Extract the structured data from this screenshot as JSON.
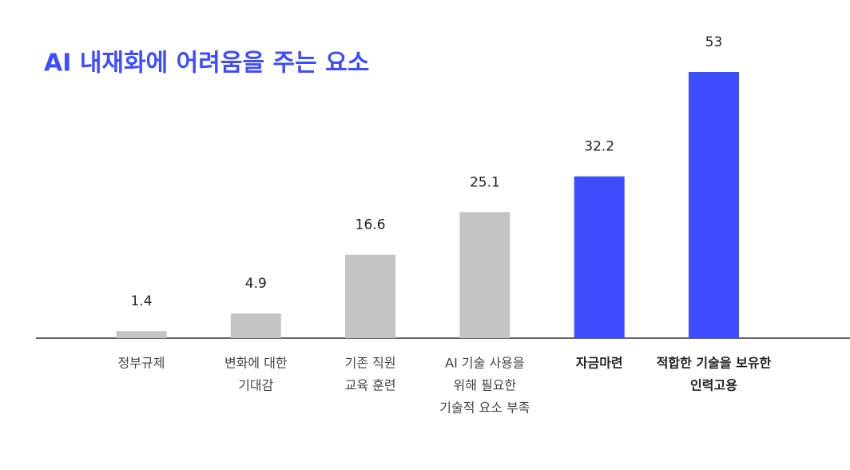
{
  "chart_data": {
    "type": "bar",
    "title": "AI 내재화에 어려움을 주는 요소",
    "categories": [
      [
        "정부규제"
      ],
      [
        "변화에 대한",
        "기대감"
      ],
      [
        "기존 직원",
        "교육 훈련"
      ],
      [
        "AI 기술 사용을",
        "위해 필요한",
        "기술적 요소 부족"
      ],
      [
        "자금마련"
      ],
      [
        "적합한 기술을 보유한",
        "인력고용"
      ]
    ],
    "values": [
      1.4,
      4.9,
      16.6,
      25.1,
      32.2,
      53
    ],
    "colors": [
      "#c4c4c4",
      "#c4c4c4",
      "#c4c4c4",
      "#c4c4c4",
      "#3d4dff",
      "#3d4dff"
    ]
  }
}
